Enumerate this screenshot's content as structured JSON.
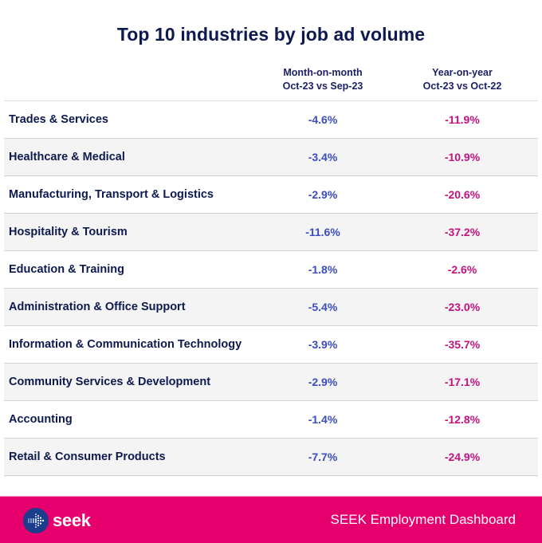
{
  "chart_data": {
    "type": "table",
    "title": "Top 10 industries by job ad volume",
    "columns": [
      {
        "key": "industry",
        "label": ""
      },
      {
        "key": "mom",
        "label_line1": "Month-on-month",
        "label_line2": "Oct-23 vs Sep-23"
      },
      {
        "key": "yoy",
        "label_line1": "Year-on-year",
        "label_line2": "Oct-23 vs Oct-22"
      }
    ],
    "rows": [
      {
        "industry": "Trades & Services",
        "mom": "-4.6%",
        "yoy": "-11.9%"
      },
      {
        "industry": "Healthcare & Medical",
        "mom": "-3.4%",
        "yoy": "-10.9%"
      },
      {
        "industry": "Manufacturing, Transport & Logistics",
        "mom": "-2.9%",
        "yoy": "-20.6%"
      },
      {
        "industry": "Hospitality & Tourism",
        "mom": "-11.6%",
        "yoy": "-37.2%"
      },
      {
        "industry": "Education & Training",
        "mom": "-1.8%",
        "yoy": "-2.6%"
      },
      {
        "industry": "Administration & Office Support",
        "mom": "-5.4%",
        "yoy": "-23.0%"
      },
      {
        "industry": "Information & Communication Technology",
        "mom": "-3.9%",
        "yoy": "-35.7%"
      },
      {
        "industry": "Community Services & Development",
        "mom": "-2.9%",
        "yoy": "-17.1%"
      },
      {
        "industry": "Accounting",
        "mom": "-1.4%",
        "yoy": "-12.8%"
      },
      {
        "industry": "Retail & Consumer Products",
        "mom": "-7.7%",
        "yoy": "-24.9%"
      }
    ],
    "values_mom": [
      -4.6,
      -3.4,
      -2.9,
      -11.6,
      -1.8,
      -5.4,
      -3.9,
      -2.9,
      -1.4,
      -7.7
    ],
    "values_yoy": [
      -11.9,
      -10.9,
      -20.6,
      -37.2,
      -2.6,
      -23.0,
      -35.7,
      -17.1,
      -12.8,
      -24.9
    ]
  },
  "colors": {
    "title": "#0d1a4f",
    "mom_value": "#3b4cc0",
    "yoy_value": "#c4127f",
    "footer_bg": "#e5006e",
    "logo_bg": "#1a3d8c",
    "alt_row": "#f4f4f4"
  },
  "footer": {
    "logo_icon": "seek-arrow-icon",
    "logo_text": "seek",
    "caption": "SEEK Employment Dashboard"
  }
}
